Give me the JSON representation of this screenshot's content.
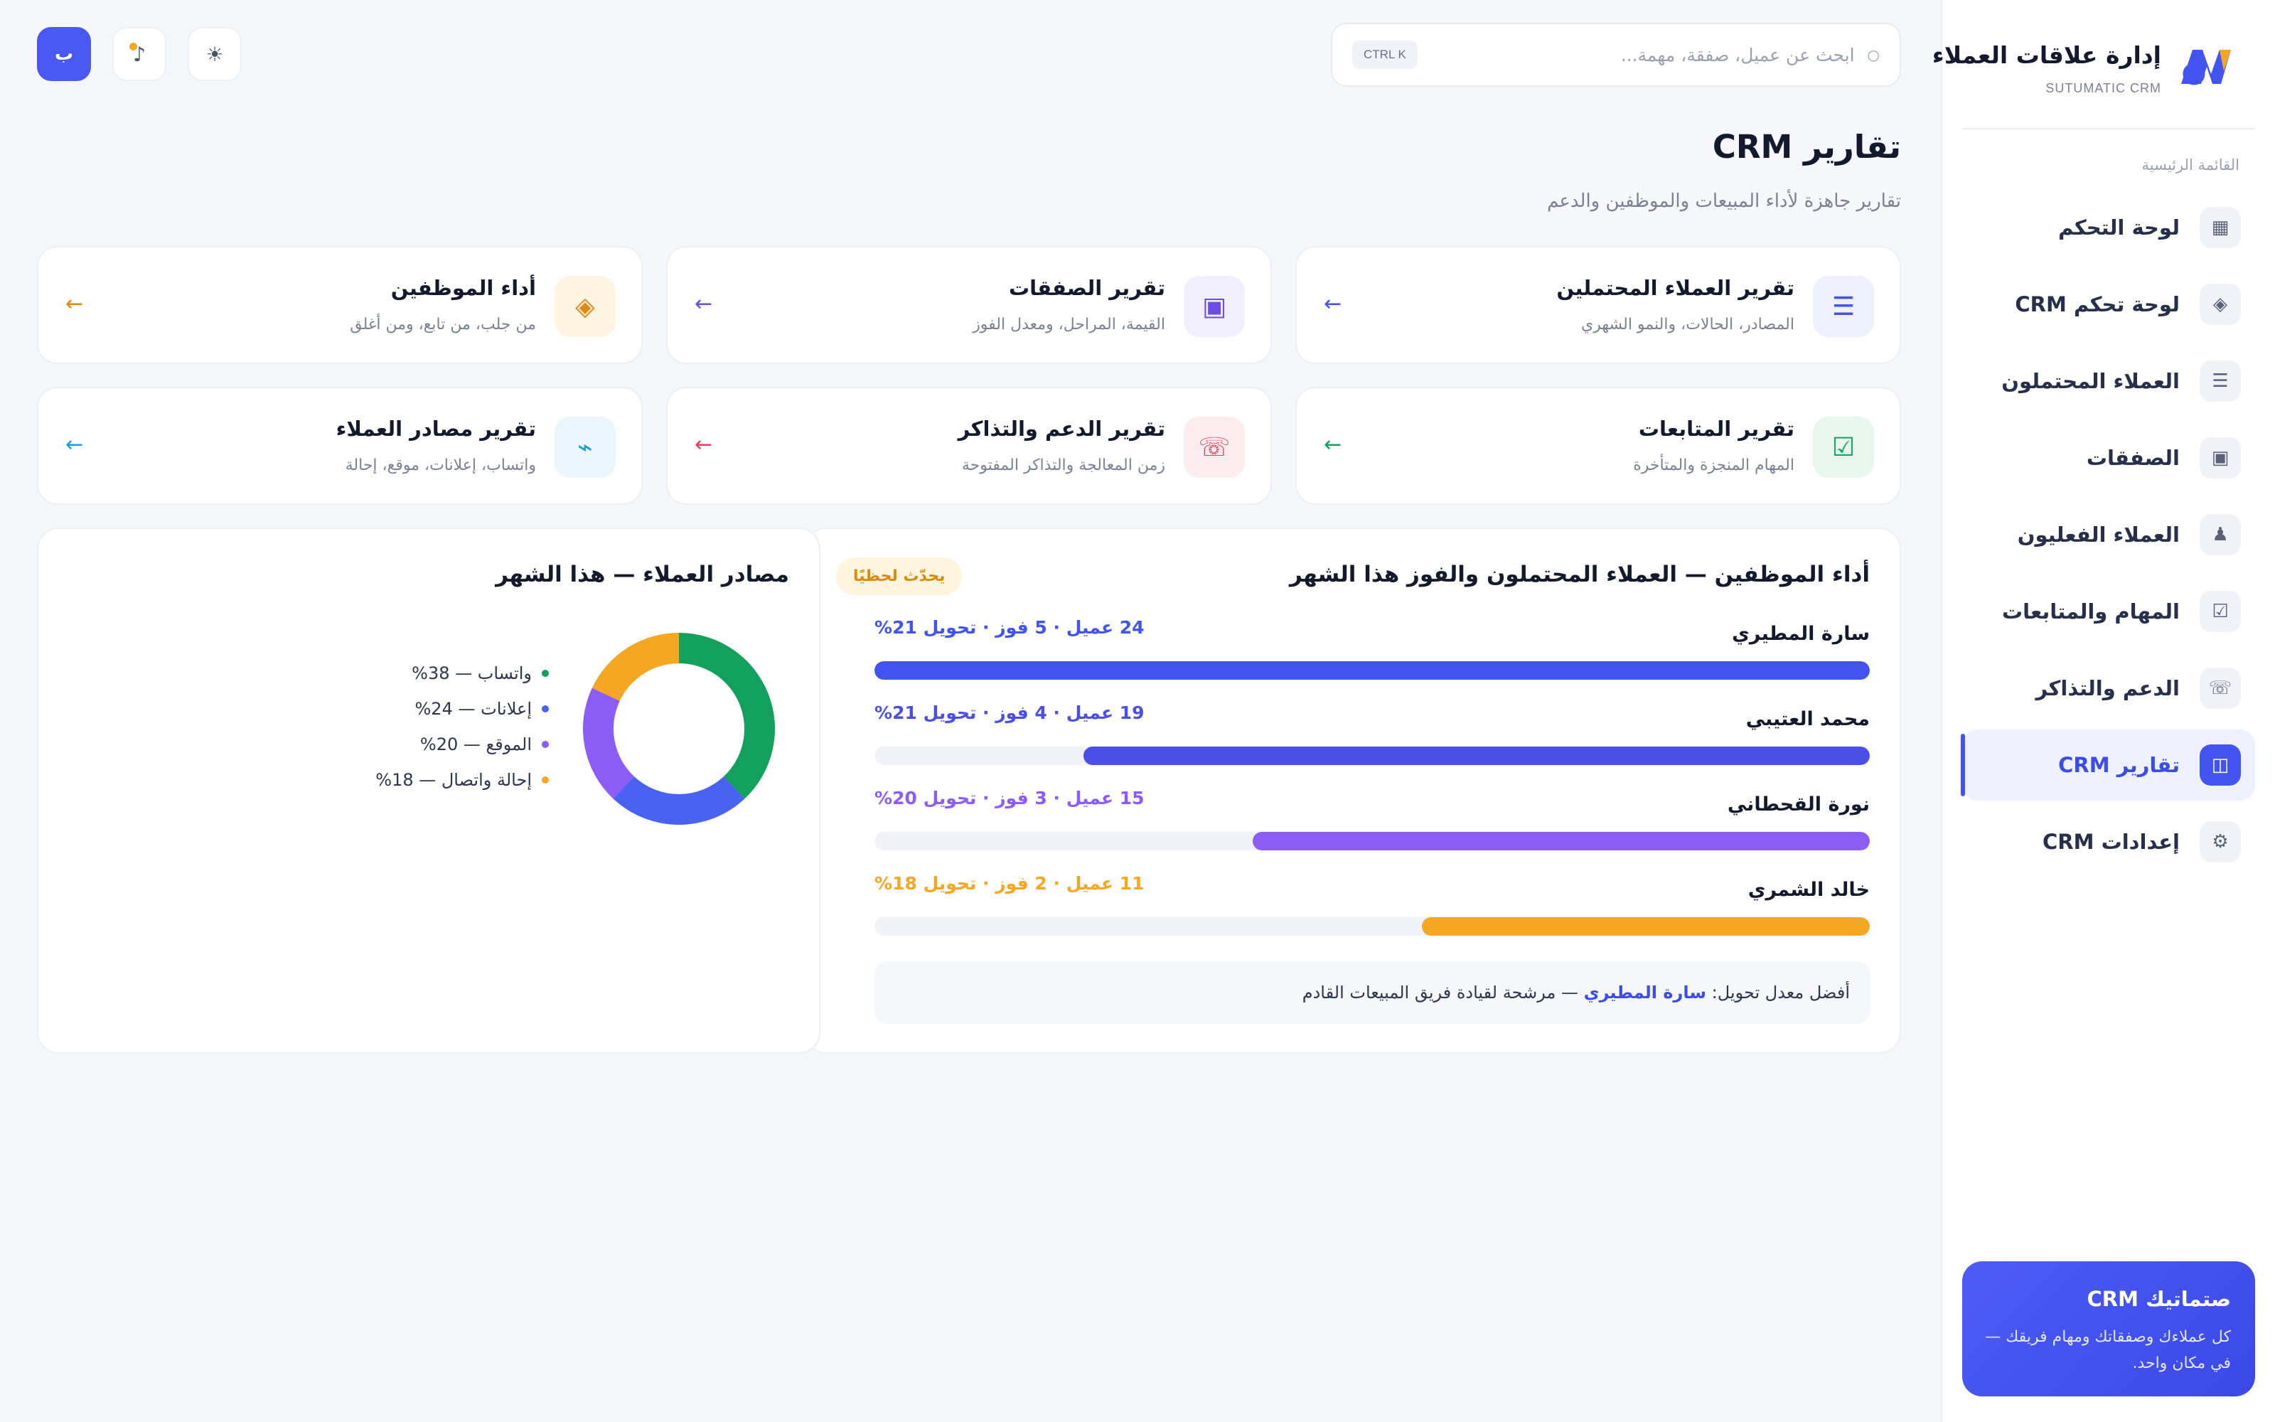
{
  "brand": {
    "title": "إدارة علاقات العملاء",
    "subtitle": "SUTUMATIC CRM"
  },
  "sidebar": {
    "section_label": "القائمة الرئيسية",
    "items": [
      {
        "label": "لوحة التحكم",
        "icon": "grid-icon",
        "glyph": "▦"
      },
      {
        "label": "لوحة تحكم CRM",
        "icon": "diamond-icon",
        "glyph": "◈"
      },
      {
        "label": "العملاء المحتملون",
        "icon": "list-icon",
        "glyph": "☰"
      },
      {
        "label": "الصفقات",
        "icon": "square-icon",
        "glyph": "▣"
      },
      {
        "label": "العملاء الفعليون",
        "icon": "person-icon",
        "glyph": "♟"
      },
      {
        "label": "المهام والمتابعات",
        "icon": "checkbox-icon",
        "glyph": "☑"
      },
      {
        "label": "الدعم والتذاكر",
        "icon": "phone-icon",
        "glyph": "☏"
      },
      {
        "label": "تقارير CRM",
        "icon": "report-icon",
        "glyph": "◫",
        "active": true
      },
      {
        "label": "إعدادات CRM",
        "icon": "gear-icon",
        "glyph": "⚙"
      }
    ],
    "promo": {
      "title": "صتماتيك CRM",
      "text": "كل عملاءك وصفقاتك ومهام فريقك — في مكان واحد."
    }
  },
  "search": {
    "placeholder": "ابحث عن عميل، صفقة، مهمة...",
    "value": "",
    "shortcut": "CTRL K"
  },
  "top_actions": {
    "theme_icon": "☀",
    "notif_icon": "♪",
    "avatar_letter": "ب"
  },
  "page": {
    "title": "تقارير CRM",
    "subtitle": "تقارير جاهزة لأداء المبيعات والموظفين والدعم"
  },
  "cards": [
    {
      "title": "تقرير العملاء المحتملين",
      "sub": "المصادر، الحالات، والنمو الشهري",
      "glyph": "☰",
      "icon": "list-icon",
      "color": "#4353F0",
      "bg": "#EEF0FE"
    },
    {
      "title": "تقرير الصفقات",
      "sub": "القيمة، المراحل، ومعدل الفوز",
      "glyph": "▣",
      "icon": "square-icon",
      "color": "#6B4DE6",
      "bg": "#F1EEFD"
    },
    {
      "title": "أداء الموظفين",
      "sub": "من جلب، من تابع، ومن أغلق",
      "glyph": "◈",
      "icon": "diamond-icon",
      "color": "#E08A12",
      "bg": "#FFF4E2"
    },
    {
      "title": "تقرير المتابعات",
      "sub": "المهام المنجزة والمتأخرة",
      "glyph": "☑",
      "icon": "checkbox-icon",
      "color": "#17A060",
      "bg": "#E7F7EE"
    },
    {
      "title": "تقرير الدعم والتذاكر",
      "sub": "زمن المعالجة والتذاكر المفتوحة",
      "glyph": "☏",
      "icon": "phone-icon",
      "color": "#E0455E",
      "bg": "#FDECEF"
    },
    {
      "title": "تقرير مصادر العملاء",
      "sub": "واتساب، إعلانات، موقع، إحالة",
      "glyph": "⌁",
      "icon": "bolt-icon",
      "color": "#1A9FD6",
      "bg": "#EAF6FC"
    }
  ],
  "arrow_glyph": "←",
  "performance": {
    "title": "أداء الموظفين — العملاء المحتملون والفوز هذا الشهر",
    "badge": "يحدّث لحظيًا",
    "employees": [
      {
        "name": "سارة المطيري",
        "stats": "24 عميل · 5 فوز · تحويل 21%",
        "fill": 1.0,
        "color": "#4353F0"
      },
      {
        "name": "محمد العتيبي",
        "stats": "19 عميل · 4 فوز · تحويل 21%",
        "fill": 0.79,
        "color": "#4A4FE8"
      },
      {
        "name": "نورة القحطاني",
        "stats": "15 عميل · 3 فوز · تحويل 20%",
        "fill": 0.62,
        "color": "#8B5CF6"
      },
      {
        "name": "خالد الشمري",
        "stats": "11 عميل · 2 فوز · تحويل 18%",
        "fill": 0.45,
        "color": "#F5A623"
      }
    ],
    "best_prefix": "أفضل معدل تحويل:",
    "best_name": "سارة المطيري",
    "best_suffix": "— مرشحة لقيادة فريق المبيعات القادم"
  },
  "sources": {
    "title": "مصادر العملاء — هذا الشهر",
    "chart_data": {
      "type": "pie",
      "categories": [
        "واتساب",
        "إعلانات",
        "الموقع",
        "إحالة واتصال"
      ],
      "values": [
        38,
        24,
        20,
        18
      ],
      "colors": [
        "#12A05C",
        "#4A62F2",
        "#8B5CF6",
        "#F5A623"
      ]
    },
    "legend": [
      {
        "label": "واتساب — 38%",
        "color": "#12A05C"
      },
      {
        "label": "إعلانات — 24%",
        "color": "#4A62F2"
      },
      {
        "label": "الموقع — 20%",
        "color": "#8B5CF6"
      },
      {
        "label": "إحالة واتصال — 18%",
        "color": "#F5A623"
      }
    ]
  }
}
